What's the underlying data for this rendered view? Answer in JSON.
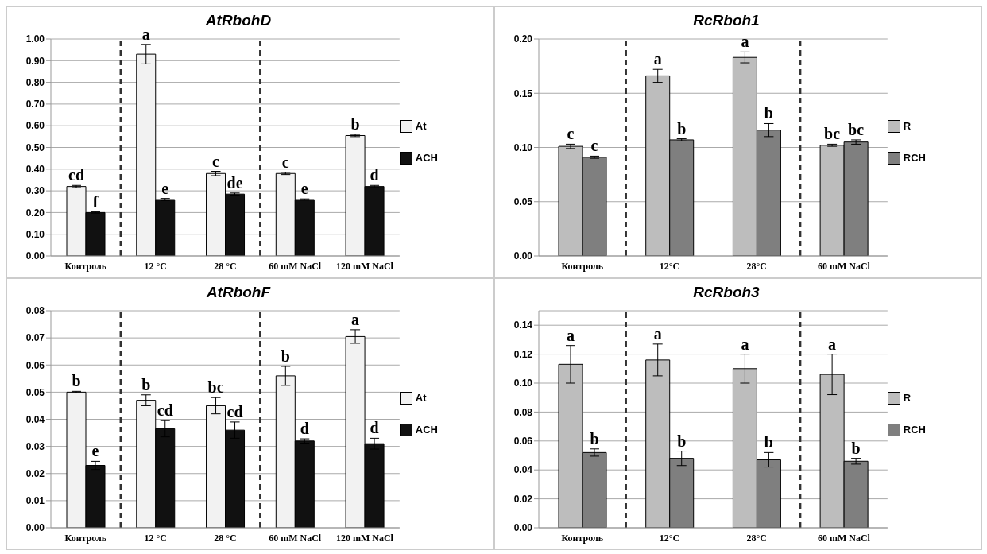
{
  "chart_data": [
    {
      "type": "bar",
      "title": "AtRbohD",
      "categories": [
        "Контроль",
        "12 °C",
        "28 °C",
        "60 mM NaCl",
        "120 mM NaCl"
      ],
      "series": [
        {
          "name": "At",
          "color": "#f2f2f2",
          "values": [
            0.32,
            0.93,
            0.38,
            0.38,
            0.555
          ],
          "errors": [
            0.005,
            0.045,
            0.01,
            0.005,
            0.005
          ],
          "value_labels": [
            "cd",
            "a",
            "c",
            "c",
            "b"
          ]
        },
        {
          "name": "ACH",
          "color": "#111111",
          "values": [
            0.2,
            0.26,
            0.285,
            0.26,
            0.32
          ],
          "errors": [
            0.003,
            0.005,
            0.005,
            0.003,
            0.005
          ],
          "value_labels": [
            "f",
            "e",
            "de",
            "e",
            "d"
          ]
        }
      ],
      "ylim": [
        0,
        1
      ],
      "yticks": [
        {
          "value": 0,
          "label": "0.00"
        },
        {
          "value": 0.1,
          "label": "0.10"
        },
        {
          "value": 0.2,
          "label": "0.20"
        },
        {
          "value": 0.3,
          "label": "0.30"
        },
        {
          "value": 0.4,
          "label": "0.40"
        },
        {
          "value": 0.5,
          "label": "0.50"
        },
        {
          "value": 0.6,
          "label": "0.60"
        },
        {
          "value": 0.7,
          "label": "0.70"
        },
        {
          "value": 0.8,
          "label": "0.80"
        },
        {
          "value": 0.9,
          "label": "0.90"
        },
        {
          "value": 1,
          "label": "1.00"
        }
      ],
      "grid": "y",
      "legend": "right"
    },
    {
      "type": "bar",
      "title": "RcRboh1",
      "categories": [
        "Контроль",
        "12°C",
        "28°C",
        "60 mM NaCl"
      ],
      "series": [
        {
          "name": "R",
          "color": "#bdbdbd",
          "values": [
            0.101,
            0.166,
            0.183,
            0.102
          ],
          "errors": [
            0.002,
            0.006,
            0.005,
            0.001
          ],
          "value_labels": [
            "c",
            "a",
            "a",
            "bc"
          ]
        },
        {
          "name": "RCH",
          "color": "#7f7f7f",
          "values": [
            0.091,
            0.107,
            0.116,
            0.105
          ],
          "errors": [
            0.001,
            0.001,
            0.006,
            0.002
          ],
          "value_labels": [
            "c",
            "b",
            "b",
            "bc"
          ]
        }
      ],
      "ylim": [
        0,
        0.2
      ],
      "yticks": [
        {
          "value": 0,
          "label": "0.00"
        },
        {
          "value": 0.05,
          "label": "0.05"
        },
        {
          "value": 0.1,
          "label": "0.10"
        },
        {
          "value": 0.15,
          "label": "0.15"
        },
        {
          "value": 0.2,
          "label": "0.20"
        }
      ],
      "grid": "y",
      "legend": "right"
    },
    {
      "type": "bar",
      "title": "AtRbohF",
      "categories": [
        "Контроль",
        "12 °C",
        "28 °C",
        "60 mM NaCl",
        "120 mM NaCl"
      ],
      "series": [
        {
          "name": "At",
          "color": "#f2f2f2",
          "values": [
            0.05,
            0.047,
            0.045,
            0.056,
            0.0705
          ],
          "errors": [
            0.0003,
            0.002,
            0.003,
            0.0035,
            0.0025
          ],
          "value_labels": [
            "b",
            "b",
            "bc",
            "b",
            "a"
          ]
        },
        {
          "name": "ACH",
          "color": "#111111",
          "values": [
            0.023,
            0.0365,
            0.036,
            0.032,
            0.031
          ],
          "errors": [
            0.0015,
            0.003,
            0.003,
            0.0008,
            0.002
          ],
          "value_labels": [
            "e",
            "cd",
            "cd",
            "d",
            "d"
          ]
        }
      ],
      "ylim": [
        0,
        0.08
      ],
      "yticks": [
        {
          "value": 0,
          "label": "0.00"
        },
        {
          "value": 0.01,
          "label": "0.01"
        },
        {
          "value": 0.02,
          "label": "0.02"
        },
        {
          "value": 0.03,
          "label": "0.03"
        },
        {
          "value": 0.04,
          "label": "0.04"
        },
        {
          "value": 0.05,
          "label": "0.05"
        },
        {
          "value": 0.06,
          "label": "0.06"
        },
        {
          "value": 0.07,
          "label": "0.07"
        },
        {
          "value": 0.08,
          "label": "0.08"
        }
      ],
      "grid": "y",
      "legend": "right"
    },
    {
      "type": "bar",
      "title": "RcRboh3",
      "categories": [
        "Контроль",
        "12°C",
        "28°C",
        "60 mM NaCl"
      ],
      "series": [
        {
          "name": "R",
          "color": "#bdbdbd",
          "values": [
            0.113,
            0.116,
            0.11,
            0.106
          ],
          "errors": [
            0.013,
            0.011,
            0.01,
            0.014
          ],
          "value_labels": [
            "a",
            "a",
            "a",
            "a"
          ]
        },
        {
          "name": "RCH",
          "color": "#7f7f7f",
          "values": [
            0.052,
            0.048,
            0.047,
            0.046
          ],
          "errors": [
            0.0025,
            0.005,
            0.005,
            0.002
          ],
          "value_labels": [
            "b",
            "b",
            "b",
            "b"
          ]
        }
      ],
      "ylim": [
        0,
        0.15
      ],
      "yticks": [
        {
          "value": 0,
          "label": "0.00"
        },
        {
          "value": 0.02,
          "label": "0.02"
        },
        {
          "value": 0.04,
          "label": "0.04"
        },
        {
          "value": 0.06,
          "label": "0.06"
        },
        {
          "value": 0.08,
          "label": "0.08"
        },
        {
          "value": 0.1,
          "label": "0.10"
        },
        {
          "value": 0.12,
          "label": "0.12"
        },
        {
          "value": 0.14,
          "label": "0.14"
        }
      ],
      "grid": "y",
      "legend": "right"
    }
  ]
}
